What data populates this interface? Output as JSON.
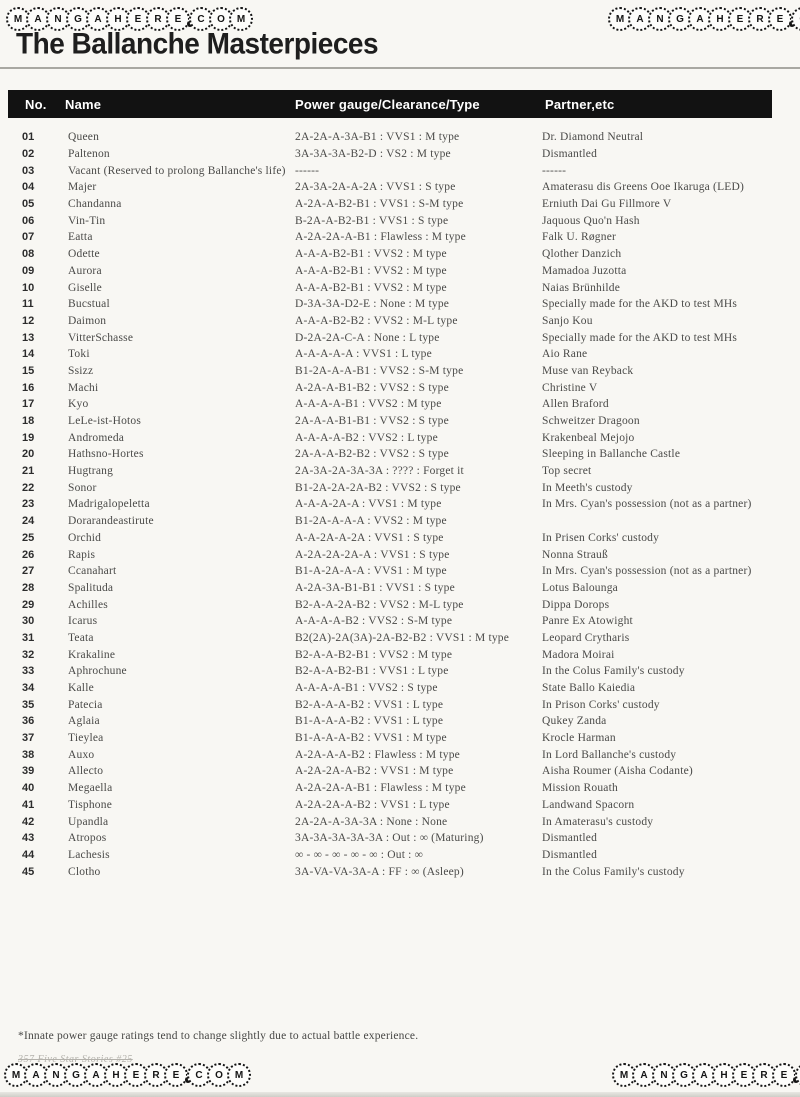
{
  "watermark": {
    "text": "MANGAHERE.COM"
  },
  "page": {
    "title": "The Ballanche Masterpieces",
    "footnote": "*Innate power gauge ratings tend to change slightly due to actual battle experience.",
    "page_footer": "357 Five Star Stories #25"
  },
  "table": {
    "columns": [
      "No.",
      "Name",
      "Power gauge/Clearance/Type",
      "Partner,etc"
    ],
    "rows": [
      {
        "no": "01",
        "name": "Queen",
        "power": "2A-2A-A-3A-B1 : VVS1 : M type",
        "partner": "Dr. Diamond Neutral"
      },
      {
        "no": "02",
        "name": "Paltenon",
        "power": "3A-3A-3A-B2-D : VS2 : M type",
        "partner": "Dismantled"
      },
      {
        "no": "03",
        "name": "Vacant (Reserved to prolong Ballanche's life)",
        "power": "------",
        "partner": "------"
      },
      {
        "no": "04",
        "name": "Majer",
        "power": "2A-3A-2A-A-2A : VVS1 : S type",
        "partner": "Amaterasu dis Greens Ooe Ikaruga (LED)"
      },
      {
        "no": "05",
        "name": "Chandanna",
        "power": "A-2A-A-B2-B1 : VVS1 : S-M type",
        "partner": "Erniuth Dai Gu Fillmore V"
      },
      {
        "no": "06",
        "name": "Vin-Tin",
        "power": "B-2A-A-B2-B1 : VVS1 : S type",
        "partner": "Jaquous Quo'n Hash"
      },
      {
        "no": "07",
        "name": "Eatta",
        "power": "A-2A-2A-A-B1 : Flawless : M type",
        "partner": "Falk U. Røgner"
      },
      {
        "no": "08",
        "name": "Odette",
        "power": "A-A-A-B2-B1 : VVS2 : M type",
        "partner": "Qlother Danzich"
      },
      {
        "no": "09",
        "name": "Aurora",
        "power": "A-A-A-B2-B1 : VVS2 : M type",
        "partner": "Mamadoa Juzotta"
      },
      {
        "no": "10",
        "name": "Giselle",
        "power": "A-A-A-B2-B1 : VVS2 : M type",
        "partner": "Naias Brünhilde"
      },
      {
        "no": "11",
        "name": "Bucstual",
        "power": "D-3A-3A-D2-E : None : M type",
        "partner": "Specially made for the AKD to test MHs"
      },
      {
        "no": "12",
        "name": "Daimon",
        "power": "A-A-A-B2-B2 : VVS2 : M-L type",
        "partner": "Sanjo Kou"
      },
      {
        "no": "13",
        "name": "VitterSchasse",
        "power": "D-2A-2A-C-A : None : L type",
        "partner": "Specially made for the AKD to test MHs"
      },
      {
        "no": "14",
        "name": "Toki",
        "power": "A-A-A-A-A : VVS1 : L type",
        "partner": "Aio Rane"
      },
      {
        "no": "15",
        "name": "Ssizz",
        "power": "B1-2A-A-A-B1 : VVS2 : S-M type",
        "partner": "Muse van Reyback"
      },
      {
        "no": "16",
        "name": "Machi",
        "power": "A-2A-A-B1-B2 : VVS2 : S type",
        "partner": "Christine V"
      },
      {
        "no": "17",
        "name": "Kyo",
        "power": "A-A-A-A-B1 : VVS2 : M type",
        "partner": "Allen Braford"
      },
      {
        "no": "18",
        "name": "LeLe-ist-Hotos",
        "power": "2A-A-A-B1-B1 : VVS2 : S type",
        "partner": "Schweitzer Dragoon"
      },
      {
        "no": "19",
        "name": "Andromeda",
        "power": "A-A-A-A-B2 : VVS2 : L type",
        "partner": "Krakenbeal Mejojo"
      },
      {
        "no": "20",
        "name": "Hathsno-Hortes",
        "power": "2A-A-A-B2-B2 : VVS2 : S type",
        "partner": "Sleeping in Ballanche Castle"
      },
      {
        "no": "21",
        "name": "Hugtrang",
        "power": "2A-3A-2A-3A-3A : ???? : Forget it",
        "partner": "Top secret"
      },
      {
        "no": "22",
        "name": "Sonor",
        "power": "B1-2A-2A-2A-B2 : VVS2 : S type",
        "partner": "In Meeth's custody"
      },
      {
        "no": "23",
        "name": "Madrigalopeletta",
        "power": "A-A-A-2A-A : VVS1 : M type",
        "partner": "In Mrs. Cyan's possession (not as a partner)"
      },
      {
        "no": "24",
        "name": "Dorarandeastirute",
        "power": "B1-2A-A-A-A : VVS2 : M type",
        "partner": ""
      },
      {
        "no": "25",
        "name": "Orchid",
        "power": "A-A-2A-A-2A : VVS1 : S type",
        "partner": "In Prisen Corks' custody"
      },
      {
        "no": "26",
        "name": "Rapis",
        "power": "A-2A-2A-2A-A : VVS1 : S type",
        "partner": "Nonna Strauß"
      },
      {
        "no": "27",
        "name": "Ccanahart",
        "power": "B1-A-2A-A-A : VVS1 : M type",
        "partner": "In Mrs. Cyan's possession (not as a partner)"
      },
      {
        "no": "28",
        "name": "Spalituda",
        "power": "A-2A-3A-B1-B1 : VVS1 : S type",
        "partner": "Lotus Balounga"
      },
      {
        "no": "29",
        "name": "Achilles",
        "power": "B2-A-A-2A-B2 : VVS2 : M-L type",
        "partner": "Dippa Dorops"
      },
      {
        "no": "30",
        "name": "Icarus",
        "power": "A-A-A-A-B2 : VVS2 : S-M type",
        "partner": "Panre Ex Atowight"
      },
      {
        "no": "31",
        "name": "Teata",
        "power": "B2(2A)-2A(3A)-2A-B2-B2 : VVS1 : M type",
        "partner": "Leopard Crytharis"
      },
      {
        "no": "32",
        "name": "Krakaline",
        "power": "B2-A-A-B2-B1 : VVS2 : M type",
        "partner": "Madora Moirai"
      },
      {
        "no": "33",
        "name": "Aphrochune",
        "power": "B2-A-A-B2-B1 : VVS1 : L type",
        "partner": "In the Colus Family's custody"
      },
      {
        "no": "34",
        "name": "Kalle",
        "power": "A-A-A-A-B1 : VVS2 : S type",
        "partner": "State Ballo Kaiedia"
      },
      {
        "no": "35",
        "name": "Patecia",
        "power": "B2-A-A-A-B2 : VVS1 : L type",
        "partner": "In Prison Corks' custody"
      },
      {
        "no": "36",
        "name": "Aglaia",
        "power": "B1-A-A-A-B2 : VVS1 : L type",
        "partner": "Qukey Zanda"
      },
      {
        "no": "37",
        "name": "Tieylea",
        "power": "B1-A-A-A-B2 : VVS1 : M type",
        "partner": "Krocle Harman"
      },
      {
        "no": "38",
        "name": "Auxo",
        "power": "A-2A-A-A-B2 : Flawless : M type",
        "partner": "In Lord Ballanche's custody"
      },
      {
        "no": "39",
        "name": "Allecto",
        "power": "A-2A-2A-A-B2 : VVS1 : M type",
        "partner": "Aisha Roumer (Aisha Codante)"
      },
      {
        "no": "40",
        "name": "Megaella",
        "power": "A-2A-2A-A-B1 : Flawless : M type",
        "partner": "Mission Rouath"
      },
      {
        "no": "41",
        "name": "Tisphone",
        "power": "A-2A-2A-A-B2 : VVS1 : L type",
        "partner": "Landwand Spacorn"
      },
      {
        "no": "42",
        "name": "Upandla",
        "power": "2A-2A-A-3A-3A : None : None",
        "partner": "In Amaterasu's custody"
      },
      {
        "no": "43",
        "name": "Atropos",
        "power": "3A-3A-3A-3A-3A : Out : ∞ (Maturing)",
        "partner": "Dismantled"
      },
      {
        "no": "44",
        "name": "Lachesis",
        "power": "∞ - ∞ - ∞ - ∞ - ∞ : Out : ∞",
        "partner": "Dismantled"
      },
      {
        "no": "45",
        "name": "Clotho",
        "power": "3A-VA-VA-3A-A : FF : ∞ (Asleep)",
        "partner": "In the Colus Family's custody"
      }
    ]
  }
}
